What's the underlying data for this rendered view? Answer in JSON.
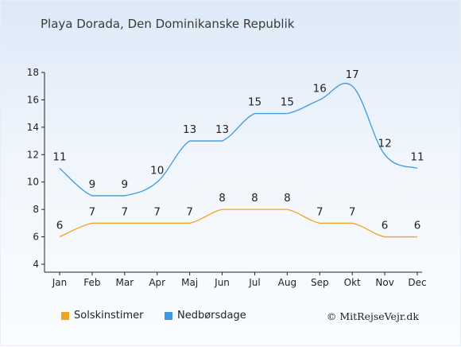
{
  "header": {
    "title": "Playa Dorada, Den Dominikanske Republik"
  },
  "chart_data": {
    "type": "line",
    "categories": [
      "Jan",
      "Feb",
      "Mar",
      "Apr",
      "Maj",
      "Jun",
      "Jul",
      "Aug",
      "Sep",
      "Okt",
      "Nov",
      "Dec"
    ],
    "ylim": [
      4,
      18
    ],
    "yticks": [
      "4",
      "6",
      "8",
      "10",
      "12",
      "14",
      "16",
      "18"
    ],
    "grid": false,
    "legend_position": "bottom-left",
    "series": [
      {
        "name": "Solskinstimer",
        "color": "#f5a21c",
        "values": [
          6,
          7,
          7,
          7,
          7,
          8,
          8,
          8,
          7,
          7,
          6,
          6
        ],
        "labels": [
          "6",
          "7",
          "7",
          "7",
          "7",
          "8",
          "8",
          "8",
          "7",
          "7",
          "6",
          "6"
        ]
      },
      {
        "name": "Nedbørsdage",
        "color": "#3b9ae1",
        "values": [
          11,
          9,
          9,
          10,
          13,
          13,
          15,
          15,
          16,
          17,
          12,
          11
        ],
        "labels": [
          "11",
          "9",
          "9",
          "10",
          "13",
          "13",
          "15",
          "15",
          "16",
          "17",
          "12",
          "11"
        ]
      }
    ]
  },
  "footer": {
    "credit": "© MitRejseVejr.dk"
  }
}
